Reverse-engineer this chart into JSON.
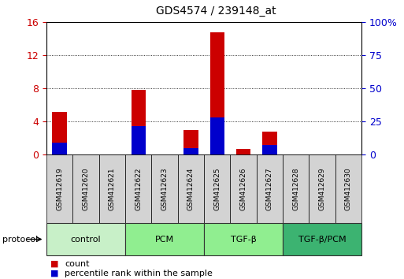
{
  "title": "GDS4574 / 239148_at",
  "samples": [
    "GSM412619",
    "GSM412620",
    "GSM412621",
    "GSM412622",
    "GSM412623",
    "GSM412624",
    "GSM412625",
    "GSM412626",
    "GSM412627",
    "GSM412628",
    "GSM412629",
    "GSM412630"
  ],
  "count_values": [
    5.2,
    0,
    0,
    7.8,
    0,
    3.0,
    14.8,
    0.7,
    2.8,
    0,
    0,
    0
  ],
  "percentile_values": [
    9.375,
    0,
    0,
    21.875,
    0,
    5.0,
    28.125,
    0,
    7.5,
    0,
    0,
    0
  ],
  "ylim_left": [
    0,
    16
  ],
  "ylim_right": [
    0,
    100
  ],
  "yticks_left": [
    0,
    4,
    8,
    12,
    16
  ],
  "yticks_right": [
    0,
    25,
    50,
    75,
    100
  ],
  "ytick_labels_right": [
    "0",
    "25",
    "50",
    "75",
    "100%"
  ],
  "groups": [
    {
      "label": "control",
      "start": 0,
      "end": 3,
      "color": "#c8f0c8"
    },
    {
      "label": "PCM",
      "start": 3,
      "end": 6,
      "color": "#90ee90"
    },
    {
      "label": "TGF-β",
      "start": 6,
      "end": 9,
      "color": "#90ee90"
    },
    {
      "label": "TGF-β/PCM",
      "start": 9,
      "end": 12,
      "color": "#3cb371"
    }
  ],
  "bar_color_count": "#cc0000",
  "bar_color_percentile": "#0000cc",
  "bar_width": 0.55,
  "protocol_label": "protocol",
  "legend_count": "count",
  "legend_percentile": "percentile rank within the sample",
  "count_color": "#cc0000",
  "right_axis_color": "#0000cc",
  "left_axis_color": "#cc0000",
  "sample_box_color": "#d3d3d3",
  "fig_width": 5.13,
  "fig_height": 3.54
}
